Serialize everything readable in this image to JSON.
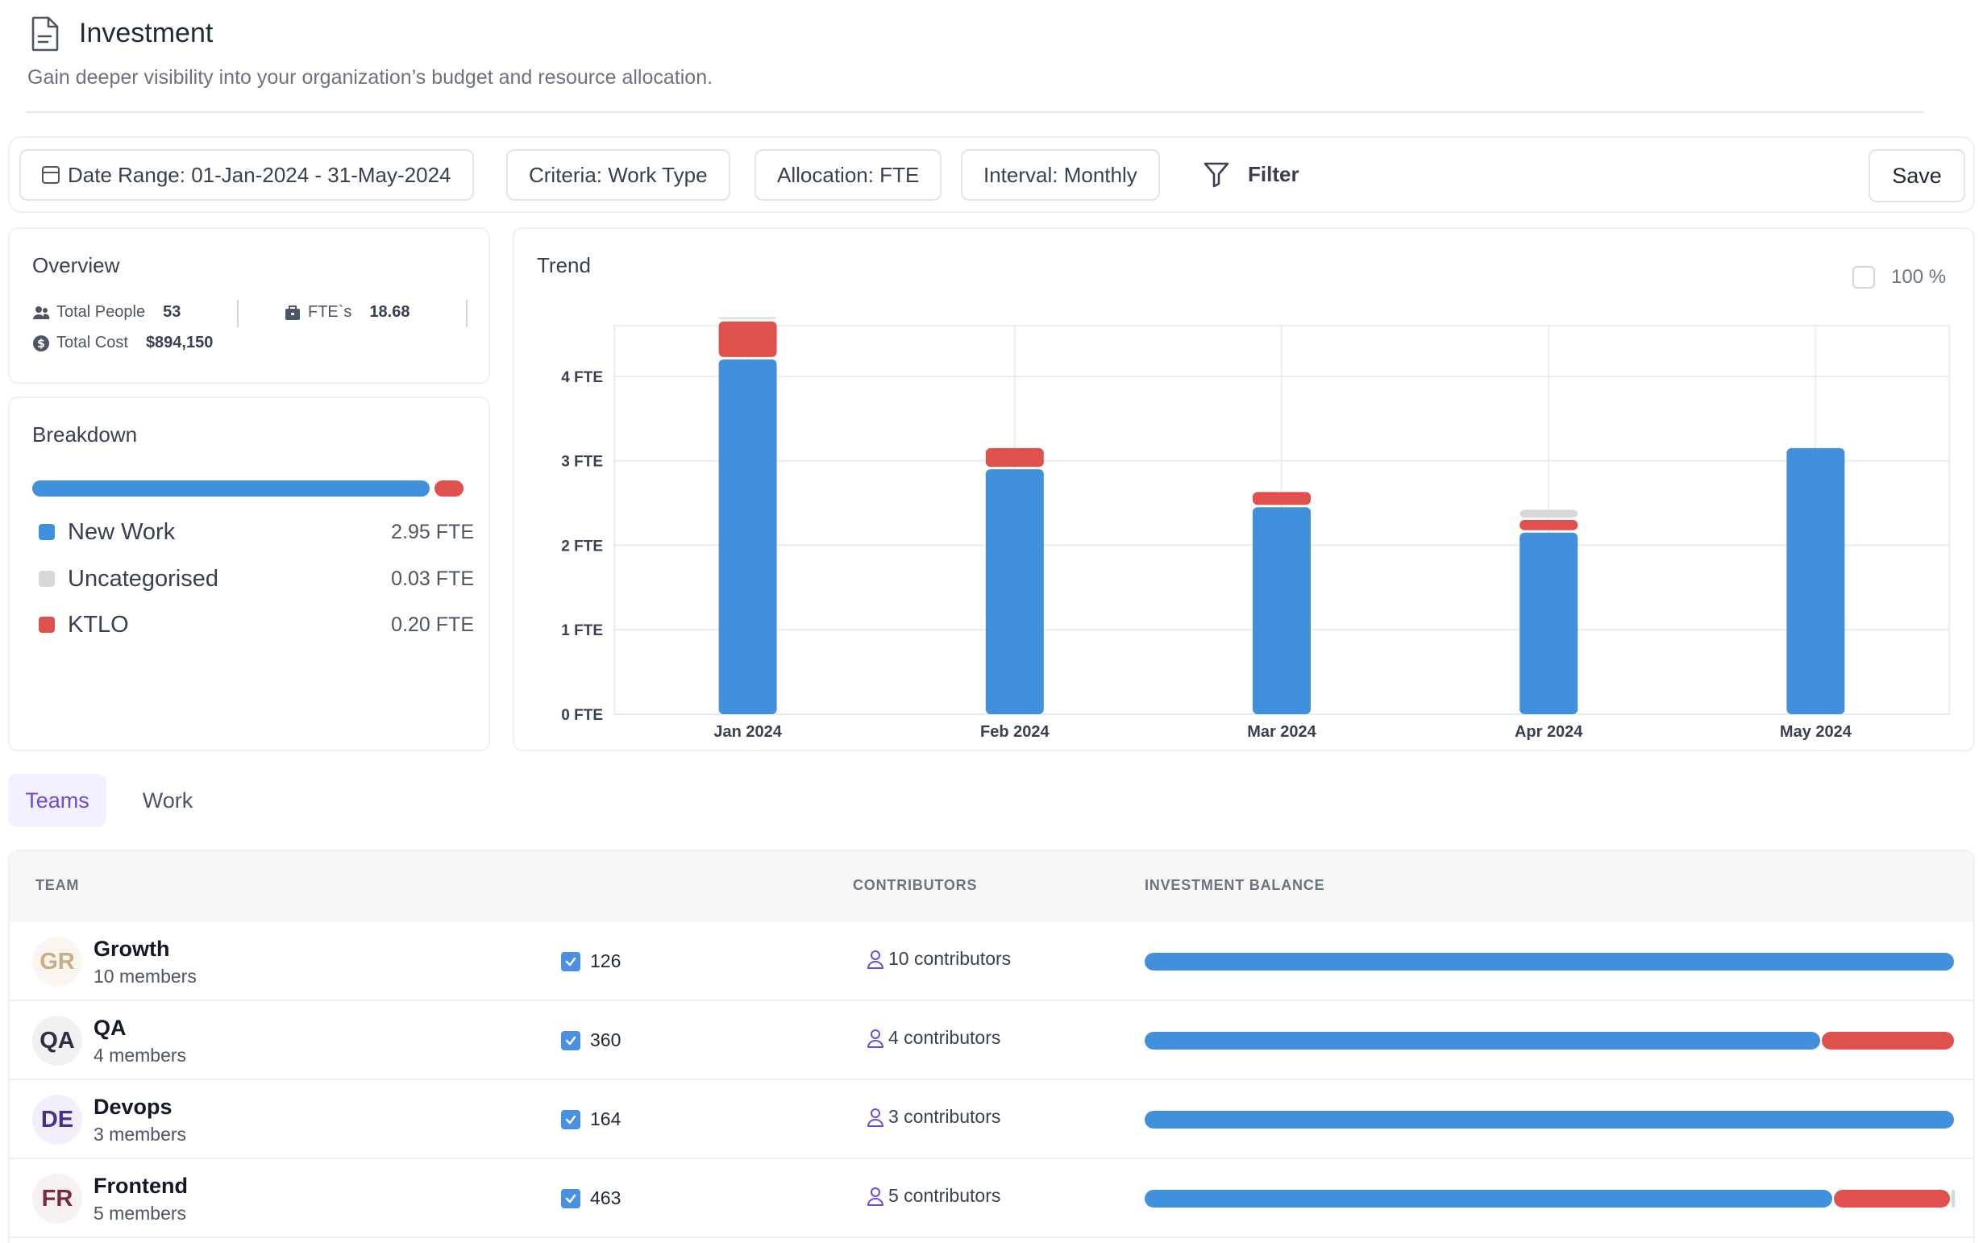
{
  "header": {
    "title": "Investment",
    "subtitle": "Gain deeper visibility into your organization’s budget and resource allocation."
  },
  "toolbar": {
    "date_range": "Date Range: 01-Jan-2024 - 31-May-2024",
    "criteria": "Criteria: Work Type",
    "allocation": "Allocation: FTE",
    "interval": "Interval: Monthly",
    "filter": "Filter",
    "save": "Save"
  },
  "overview": {
    "title": "Overview",
    "total_people_label": "Total People",
    "total_people": "53",
    "ftes_label": "FTE`s",
    "ftes": "18.68",
    "total_cost_label": "Total Cost",
    "total_cost": "$894,150"
  },
  "breakdown": {
    "title": "Breakdown",
    "items": [
      {
        "label": "New Work",
        "value": "2.95 FTE",
        "fte": 2.95,
        "color": "#4090dc"
      },
      {
        "label": "Uncategorised",
        "value": "0.03 FTE",
        "fte": 0.03,
        "color": "#d6d8dc"
      },
      {
        "label": "KTLO",
        "value": "0.20 FTE",
        "fte": 0.2,
        "color": "#e0504d"
      }
    ]
  },
  "trend": {
    "title": "Trend",
    "percent_toggle": "100 %"
  },
  "chart_data": {
    "type": "bar",
    "stacked": true,
    "categories": [
      "Jan 2024",
      "Feb 2024",
      "Mar 2024",
      "Apr 2024",
      "May 2024"
    ],
    "series": [
      {
        "name": "New Work",
        "color": "#4090dc",
        "values": [
          4.2,
          2.9,
          2.45,
          2.15,
          3.15
        ]
      },
      {
        "name": "KTLO",
        "color": "#e0504d",
        "values": [
          0.45,
          0.25,
          0.18,
          0.15,
          0
        ]
      },
      {
        "name": "Uncategorised",
        "color": "#d6d8dc",
        "values": [
          0.05,
          0,
          0,
          0.12,
          0
        ]
      }
    ],
    "ylabel": "FTE",
    "yticks": [
      "0 FTE",
      "1 FTE",
      "2 FTE",
      "3 FTE",
      "4 FTE"
    ],
    "ylim": [
      0,
      4.6
    ]
  },
  "tabs": [
    {
      "label": "Teams",
      "active": true
    },
    {
      "label": "Work",
      "active": false
    }
  ],
  "table": {
    "headers": {
      "team": "TEAM",
      "contributors": "CONTRIBUTORS",
      "balance": "INVESTMENT BALANCE"
    },
    "rows": [
      {
        "initials": "GR",
        "name": "Growth",
        "members": "10 members",
        "count": "126",
        "contributors": "10 contributors",
        "avatar_bg": "#faf6ef",
        "avatar_fg": "#c9ae85",
        "balance": [
          1.0,
          0,
          0
        ]
      },
      {
        "initials": "QA",
        "name": "QA",
        "members": "4 members",
        "count": "360",
        "contributors": "4 contributors",
        "avatar_bg": "#f1f1f4",
        "avatar_fg": "#2e2f45",
        "balance": [
          0.835,
          0.165,
          0
        ]
      },
      {
        "initials": "DE",
        "name": "Devops",
        "members": "3 members",
        "count": "164",
        "contributors": "3 contributors",
        "avatar_bg": "#f2effa",
        "avatar_fg": "#4a2f8a",
        "balance": [
          1.0,
          0,
          0
        ]
      },
      {
        "initials": "FR",
        "name": "Frontend",
        "members": "5 members",
        "count": "463",
        "contributors": "5 contributors",
        "avatar_bg": "#f7f1f2",
        "avatar_fg": "#7a2a3e",
        "balance": [
          0.85,
          0.145,
          0.005
        ]
      }
    ]
  }
}
